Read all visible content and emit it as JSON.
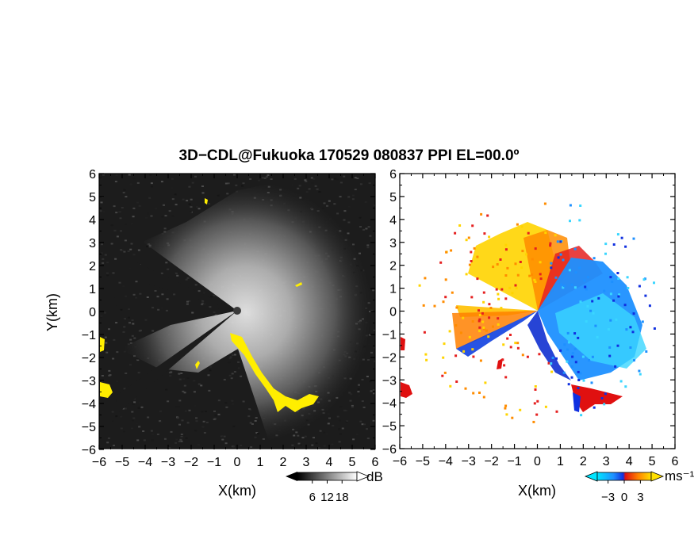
{
  "title": "3D−CDL@Fukuoka 170529 080837 PPI EL=00.0º",
  "chart_data": [
    {
      "panel": "left",
      "type": "heatmap",
      "quantity_unit": "dB",
      "xlabel": "X(km)",
      "ylabel": "Y(km)",
      "xlim": [
        -6,
        6
      ],
      "ylim": [
        -6,
        6
      ],
      "x_ticks": [
        "−6",
        "−5",
        "−4",
        "−3",
        "−2",
        "−1",
        "0",
        "1",
        "2",
        "3",
        "4",
        "5",
        "6"
      ],
      "y_ticks": [
        "6",
        "5",
        "4",
        "3",
        "2",
        "1",
        "0",
        "−1",
        "−2",
        "−3",
        "−4",
        "−5",
        "−6"
      ],
      "colorbar": {
        "min": 0,
        "max": 24,
        "ticks": [
          "6",
          "12",
          "18"
        ],
        "tick_values": [
          6,
          12,
          18
        ],
        "unit": "dB"
      },
      "colormap": [
        "#000000",
        "#ffffff"
      ],
      "highlight_color": "#ffee00",
      "background_color": "#1c1c1c",
      "clutter_regions_color": "#ffee00"
    },
    {
      "panel": "right",
      "type": "heatmap",
      "quantity_unit": "ms⁻¹",
      "xlabel": "X(km)",
      "xlim": [
        -6,
        6
      ],
      "ylim": [
        -6,
        6
      ],
      "x_ticks": [
        "−6",
        "−5",
        "−4",
        "−3",
        "−2",
        "−1",
        "0",
        "1",
        "2",
        "3",
        "4",
        "5",
        "6"
      ],
      "y_ticks": [
        "6",
        "5",
        "4",
        "3",
        "2",
        "1",
        "0",
        "−1",
        "−2",
        "−3",
        "−4",
        "−5",
        "−6"
      ],
      "colorbar": {
        "min": -5,
        "max": 5,
        "ticks": [
          "−3",
          "0",
          "3"
        ],
        "tick_values": [
          -3,
          0,
          3
        ],
        "unit": "ms⁻¹"
      },
      "colormap": [
        "#00e5ff",
        "#1e90ff",
        "#1030e0",
        "#e01010",
        "#ff7f00",
        "#ffe000"
      ],
      "background_color": "#ffffff"
    }
  ]
}
